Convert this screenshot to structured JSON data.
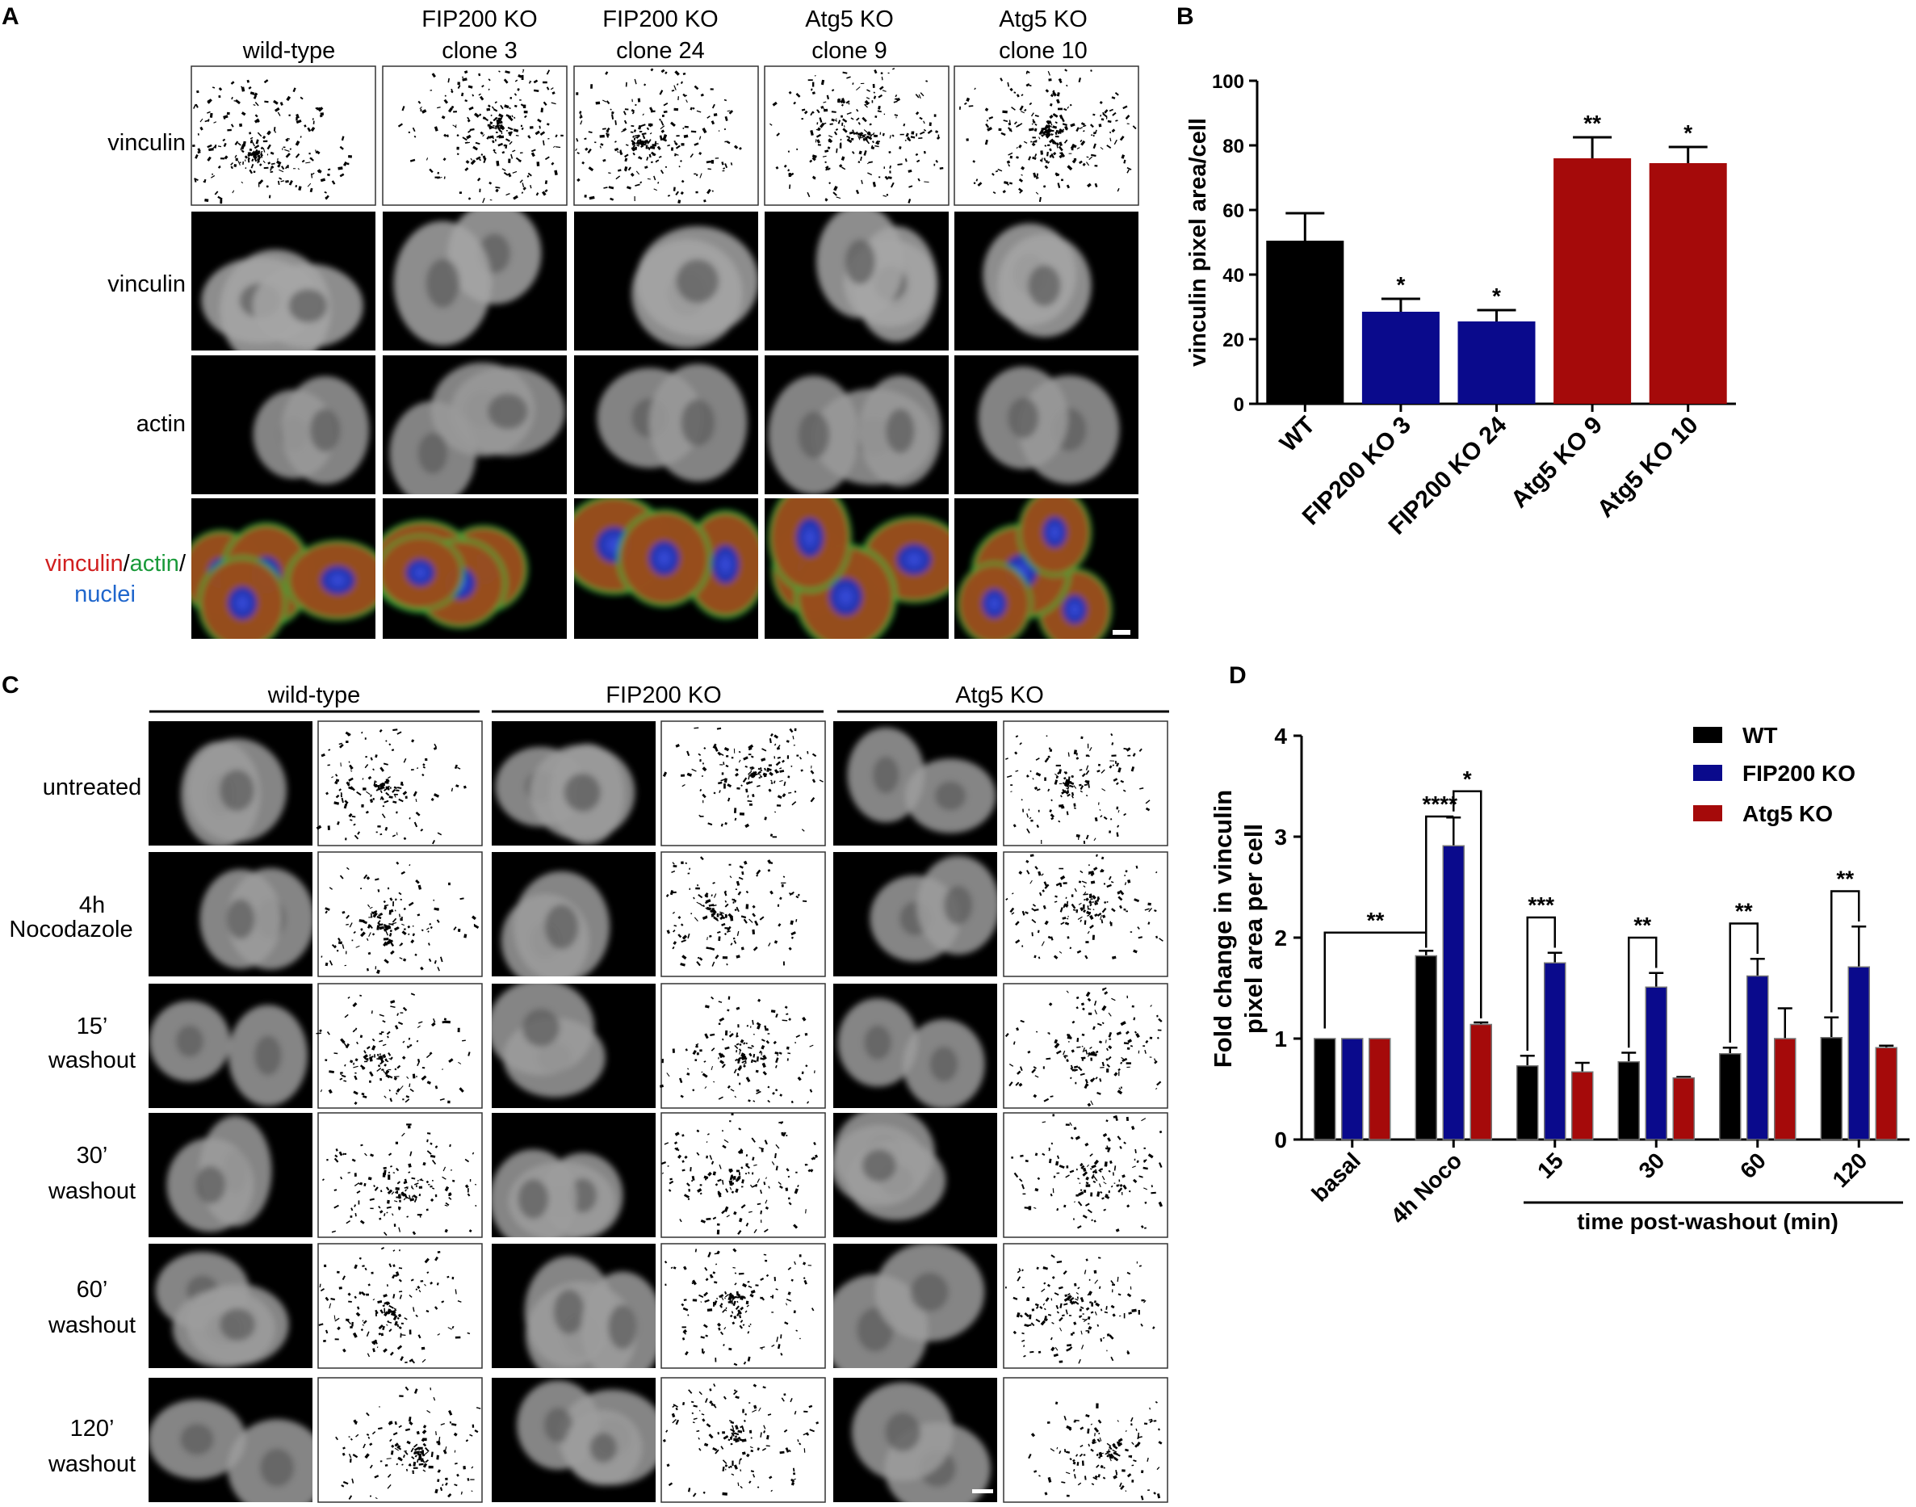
{
  "panels": {
    "a": {
      "letter": "A",
      "columns": [
        [
          "wild-type"
        ],
        [
          "FIP200 KO",
          "clone 3"
        ],
        [
          "FIP200 KO",
          "clone 24"
        ],
        [
          "Atg5 KO",
          "clone 9"
        ],
        [
          "Atg5 KO",
          "clone 10"
        ]
      ],
      "rows": [
        "vinculin",
        "vinculin",
        "actin"
      ],
      "merge_label": {
        "vinculin": "vinculin",
        "sep1": "/",
        "actin": "actin",
        "sep2": "/",
        "nuclei": "nuclei"
      }
    },
    "b": {
      "letter": "B"
    },
    "c": {
      "letter": "C",
      "groups": [
        "wild-type",
        "FIP200 KO",
        "Atg5 KO"
      ],
      "rows": [
        [
          "untreated"
        ],
        [
          "4h",
          "Nocodazole"
        ],
        [
          "15’",
          "washout"
        ],
        [
          "30’",
          "washout"
        ],
        [
          "60’",
          "washout"
        ],
        [
          "120’",
          "washout"
        ]
      ]
    },
    "d": {
      "letter": "D"
    }
  },
  "colors": {
    "black": "#000000",
    "blue": "#0a0a8c",
    "red": "#a50a0a",
    "vinculin_red": "#d11f1f",
    "actin_green": "#1a9a3a",
    "nuclei_blue": "#1f66cc"
  },
  "chart_data": [
    {
      "type": "bar",
      "panel": "B",
      "categories": [
        "WT",
        "FIP200 KO 3",
        "FIP200 KO 24",
        "Atg5 KO 9",
        "Atg5 KO 10"
      ],
      "values": [
        50.5,
        28.5,
        25.5,
        76,
        74.5
      ],
      "errors": [
        8.5,
        4,
        3.5,
        6.5,
        5
      ],
      "colors": [
        "#000000",
        "#0a0a8c",
        "#0a0a8c",
        "#a50a0a",
        "#a50a0a"
      ],
      "significance": [
        "",
        "*",
        "*",
        "**",
        "*"
      ],
      "ylabel": "vinculin pixel area/cell",
      "ylim": [
        0,
        100
      ],
      "yticks": [
        0,
        20,
        40,
        60,
        80,
        100
      ]
    },
    {
      "type": "bar",
      "panel": "D",
      "categories": [
        "basal",
        "4h Noco",
        "15",
        "30",
        "60",
        "120"
      ],
      "series": [
        {
          "name": "WT",
          "color": "#000000",
          "values": [
            1,
            1.82,
            0.73,
            0.77,
            0.85,
            1.01
          ],
          "errors": [
            0,
            0.05,
            0.1,
            0.09,
            0.06,
            0.2
          ]
        },
        {
          "name": "FIP200 KO",
          "color": "#0a0a8c",
          "values": [
            1,
            2.91,
            1.75,
            1.51,
            1.62,
            1.71
          ],
          "errors": [
            0,
            0.28,
            0.1,
            0.14,
            0.17,
            0.4
          ]
        },
        {
          "name": "Atg5 KO",
          "color": "#a50a0a",
          "values": [
            1,
            1.14,
            0.67,
            0.61,
            1.0,
            0.91
          ],
          "errors": [
            0,
            0.02,
            0.09,
            0.01,
            0.3,
            0.02
          ]
        }
      ],
      "ylabel": "Fold change in vinculin pixel area per cell",
      "ylabel_lines": [
        "Fold change in vinculin",
        "pixel area per cell"
      ],
      "xlabel": "time post-washout (min)",
      "ylim": [
        0,
        4
      ],
      "yticks": [
        0,
        1,
        2,
        3,
        4
      ],
      "legend": "top-right",
      "significance": {
        "basal_vs_noco": "**",
        "noco_wt_fip": "****",
        "noco_fip_atg": "*",
        "t15": "***",
        "t30": "**",
        "t60": "**",
        "t120": "**"
      }
    }
  ]
}
